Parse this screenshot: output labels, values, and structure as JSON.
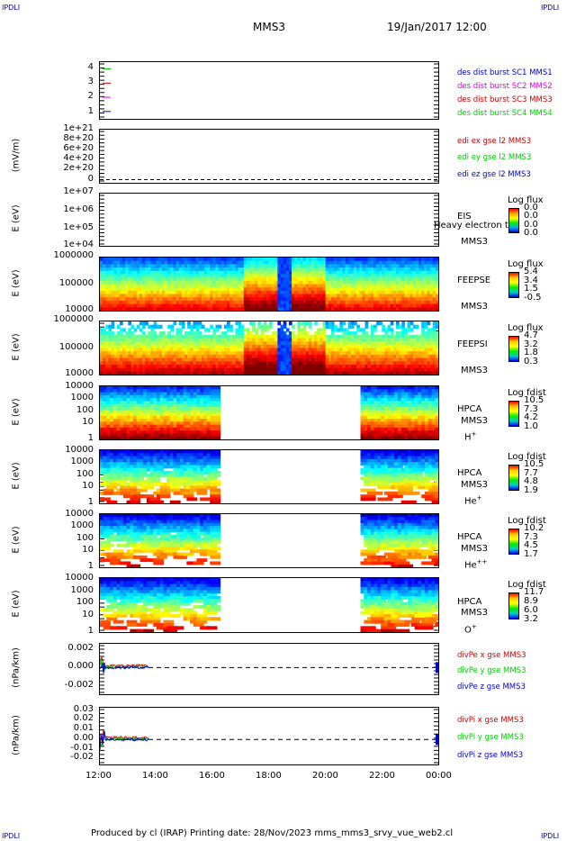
{
  "corner_tags": {
    "tl": "IPDLI",
    "tr": "IPDLI",
    "bl": "IPDLI",
    "br": "IPDLI"
  },
  "header": {
    "spacecraft": "MMS3",
    "date": "19/Jan/2017 12:00"
  },
  "footer": "Produced by cl (IRAP)   Printing date: 28/Nov/2023   mms_mms3_srvy_vue_web2.cl",
  "colors": {
    "red": "#ff0000",
    "green": "#00cc00",
    "blue": "#0000cc",
    "magenta": "#dd00dd",
    "darkred": "#cc0000"
  },
  "chart_data": [
    {
      "type": "scatter",
      "name": "burst",
      "ylim": [
        0.5,
        4.5
      ],
      "yticks": [
        "4",
        "3",
        "2",
        "1"
      ],
      "legend": [
        {
          "label": "des dist burst SC1 MMS1",
          "color": "#0000cc"
        },
        {
          "label": "des dist burst SC2 MMS2",
          "color": "#dd00dd"
        },
        {
          "label": "des dist burst SC3 MMS3",
          "color": "#cc0000"
        },
        {
          "label": "des dist burst SC4 MMS4",
          "color": "#00cc00"
        }
      ]
    },
    {
      "type": "line",
      "name": "edi",
      "ylabel": "(mV/m)",
      "yticks": [
        "1e+21",
        "8e+20",
        "6e+20",
        "4e+20",
        "2e+20",
        "0"
      ],
      "legend": [
        {
          "label": "edi ex gse l2 MMS3",
          "color": "#cc0000"
        },
        {
          "label": "edi ey gse l2 MMS3",
          "color": "#00cc00"
        },
        {
          "label": "edi ez gse l2 MMS3",
          "color": "#0000cc"
        }
      ]
    },
    {
      "type": "heatmap",
      "name": "eis",
      "ylabel": "E (eV)",
      "yticks": [
        "1e+07",
        "1e+06",
        "1e+05",
        "1e+04"
      ],
      "side": [
        "EIS",
        "MMS3"
      ],
      "overlay": "Heavy electron to",
      "cbar_title": "Log flux",
      "cbar_ticks": [
        "0.0",
        "0.0",
        "0.0",
        "0.0"
      ]
    },
    {
      "type": "heatmap",
      "name": "feepse",
      "ylabel": "E (eV)",
      "yticks": [
        "1000000",
        "100000",
        "10000"
      ],
      "side": [
        "FEEPSE",
        "MMS3"
      ],
      "cbar_title": "Log flux",
      "cbar_ticks": [
        "5.4",
        "3.4",
        "1.5",
        "-0.5"
      ]
    },
    {
      "type": "heatmap",
      "name": "feepsi",
      "ylabel": "E (eV)",
      "yticks": [
        "1000000",
        "100000",
        "10000"
      ],
      "side": [
        "FEEPSI",
        "MMS3"
      ],
      "cbar_title": "Log flux",
      "cbar_ticks": [
        "4.7",
        "3.2",
        "1.8",
        "0.3"
      ]
    },
    {
      "type": "heatmap",
      "name": "hpca-h",
      "ylabel": "E (eV)",
      "yticks": [
        "10000",
        "1000",
        "100",
        "10",
        "1"
      ],
      "side": [
        "HPCA",
        "MMS3"
      ],
      "species": "H",
      "species_sup": "+",
      "cbar_title": "Log fdist",
      "cbar_ticks": [
        "10.5",
        "7.3",
        "4.2",
        "1.0"
      ]
    },
    {
      "type": "heatmap",
      "name": "hpca-he",
      "ylabel": "E (eV)",
      "yticks": [
        "10000",
        "1000",
        "100",
        "10",
        "1"
      ],
      "side": [
        "HPCA",
        "MMS3"
      ],
      "species": "He",
      "species_sup": "+",
      "cbar_title": "Log fdist",
      "cbar_ticks": [
        "10.5",
        "7.7",
        "4.8",
        "1.9"
      ]
    },
    {
      "type": "heatmap",
      "name": "hpca-hepp",
      "ylabel": "E (eV)",
      "yticks": [
        "10000",
        "1000",
        "100",
        "10",
        "1"
      ],
      "side": [
        "HPCA",
        "MMS3"
      ],
      "species": "He",
      "species_sup": "++",
      "cbar_title": "Log fdist",
      "cbar_ticks": [
        "10.2",
        "7.3",
        "4.5",
        "1.7"
      ]
    },
    {
      "type": "heatmap",
      "name": "hpca-o",
      "ylabel": "E (eV)",
      "yticks": [
        "10000",
        "1000",
        "100",
        "10",
        "1"
      ],
      "side": [
        "HPCA",
        "MMS3"
      ],
      "species": "O",
      "species_sup": "+",
      "cbar_title": "Log fdist",
      "cbar_ticks": [
        "11.7",
        "8.9",
        "6.0",
        "3.2"
      ]
    },
    {
      "type": "line",
      "name": "divpe",
      "ylabel": "(nPa/km)",
      "yticks": [
        "0.002",
        "0.000",
        "-0.002"
      ],
      "legend": [
        {
          "label": "divPe x gse MMS3",
          "color": "#cc0000"
        },
        {
          "label": "divPe y gse MMS3",
          "color": "#00cc00"
        },
        {
          "label": "divPe z gse MMS3",
          "color": "#0000cc"
        }
      ]
    },
    {
      "type": "line",
      "name": "divpi",
      "ylabel": "(nPa/km)",
      "yticks": [
        "0.03",
        "0.02",
        "0.01",
        "0.00",
        "-0.01",
        "-0.02"
      ],
      "legend": [
        {
          "label": "divPi x gse MMS3",
          "color": "#cc0000"
        },
        {
          "label": "divPi y gse MMS3",
          "color": "#00cc00"
        },
        {
          "label": "divPi z gse MMS3",
          "color": "#0000cc"
        }
      ]
    }
  ],
  "xaxis": {
    "ticks": [
      "12:00",
      "14:00",
      "16:00",
      "18:00",
      "20:00",
      "22:00",
      "00:00"
    ]
  }
}
